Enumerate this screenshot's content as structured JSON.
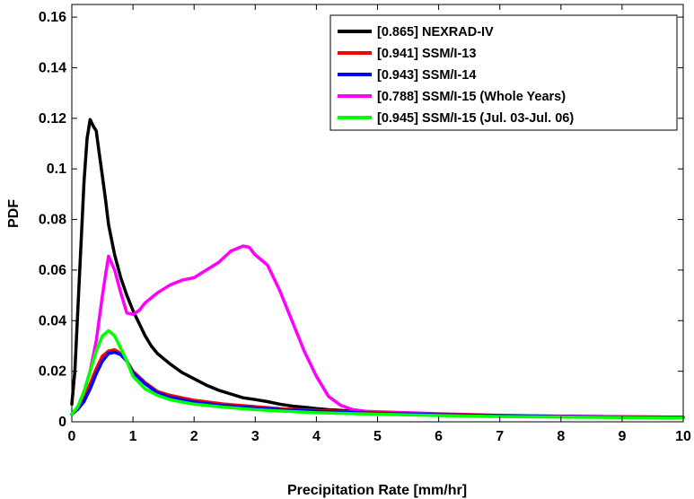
{
  "chart_data": {
    "type": "line",
    "title": "",
    "xlabel": "Precipitation Rate [mm/hr]",
    "ylabel": "PDF",
    "xlim": [
      0,
      10
    ],
    "ylim": [
      0,
      0.165
    ],
    "xticks": [
      0,
      1,
      2,
      3,
      4,
      5,
      6,
      7,
      8,
      9,
      10
    ],
    "yticks": [
      0,
      0.02,
      0.04,
      0.06,
      0.08,
      0.1,
      0.12,
      0.14,
      0.16
    ],
    "ytick_labels": [
      "0",
      "0.02",
      "0.04",
      "0.06",
      "0.08",
      "0.1",
      "0.12",
      "0.14",
      "0.16"
    ],
    "grid": false,
    "legend_position": "top-right",
    "series": [
      {
        "name": "[0.865] NEXRAD-IV",
        "color": "#000000",
        "x": [
          0,
          0.05,
          0.1,
          0.15,
          0.2,
          0.25,
          0.3,
          0.35,
          0.4,
          0.45,
          0.5,
          0.55,
          0.6,
          0.7,
          0.8,
          0.9,
          1.0,
          1.1,
          1.2,
          1.3,
          1.4,
          1.5,
          1.6,
          1.8,
          2.0,
          2.2,
          2.4,
          2.6,
          2.8,
          3.0,
          3.2,
          3.4,
          3.6,
          3.8,
          4.0,
          4.2,
          4.4,
          4.6,
          4.8,
          5.0,
          5.5,
          6.0,
          6.5,
          7.0,
          7.5,
          8.0,
          8.5,
          9.0,
          9.5,
          10.0
        ],
        "y": [
          0.007,
          0.02,
          0.045,
          0.07,
          0.095,
          0.112,
          0.1195,
          0.117,
          0.115,
          0.106,
          0.097,
          0.088,
          0.078,
          0.066,
          0.057,
          0.05,
          0.044,
          0.039,
          0.034,
          0.03,
          0.027,
          0.025,
          0.023,
          0.0195,
          0.017,
          0.0145,
          0.0125,
          0.011,
          0.0095,
          0.0088,
          0.008,
          0.007,
          0.0062,
          0.0058,
          0.0052,
          0.0048,
          0.0045,
          0.0042,
          0.004,
          0.0037,
          0.0033,
          0.003,
          0.0027,
          0.0024,
          0.0022,
          0.002,
          0.0019,
          0.0018,
          0.0017,
          0.0016
        ]
      },
      {
        "name": "[0.941] SSM/I-13",
        "color": "#ff0000",
        "x": [
          0,
          0.1,
          0.2,
          0.3,
          0.4,
          0.5,
          0.6,
          0.7,
          0.8,
          0.9,
          1.0,
          1.2,
          1.4,
          1.6,
          1.8,
          2.0,
          2.5,
          3.0,
          3.5,
          4.0,
          5.0,
          6.0,
          7.0,
          8.0,
          9.0,
          10.0
        ],
        "y": [
          0.003,
          0.005,
          0.009,
          0.015,
          0.021,
          0.026,
          0.028,
          0.0285,
          0.027,
          0.024,
          0.02,
          0.0155,
          0.012,
          0.0105,
          0.0095,
          0.0085,
          0.007,
          0.006,
          0.005,
          0.0045,
          0.0035,
          0.003,
          0.0025,
          0.0022,
          0.002,
          0.0018
        ]
      },
      {
        "name": "[0.943] SSM/I-14",
        "color": "#0000ff",
        "x": [
          0,
          0.1,
          0.2,
          0.3,
          0.4,
          0.5,
          0.6,
          0.7,
          0.8,
          0.9,
          1.0,
          1.2,
          1.4,
          1.6,
          1.8,
          2.0,
          2.5,
          3.0,
          3.5,
          4.0,
          5.0,
          6.0,
          7.0,
          8.0,
          9.0,
          10.0
        ],
        "y": [
          0.003,
          0.005,
          0.008,
          0.013,
          0.019,
          0.024,
          0.027,
          0.0275,
          0.0265,
          0.024,
          0.0195,
          0.015,
          0.0115,
          0.0098,
          0.0088,
          0.0078,
          0.0064,
          0.0055,
          0.0047,
          0.0042,
          0.0033,
          0.0028,
          0.0024,
          0.0021,
          0.0019,
          0.0017
        ]
      },
      {
        "name": "[0.788] SSM/I-15 (Whole Years)",
        "color": "#ff00ff",
        "x": [
          0,
          0.1,
          0.2,
          0.3,
          0.4,
          0.5,
          0.55,
          0.6,
          0.7,
          0.8,
          0.9,
          1.0,
          1.1,
          1.2,
          1.4,
          1.6,
          1.8,
          2.0,
          2.2,
          2.4,
          2.6,
          2.8,
          2.9,
          3.0,
          3.1,
          3.2,
          3.4,
          3.6,
          3.8,
          4.0,
          4.2,
          4.4,
          4.6,
          4.8,
          5.0,
          5.5,
          6.0,
          7.0,
          8.0,
          9.0,
          10.0
        ],
        "y": [
          0.003,
          0.006,
          0.012,
          0.02,
          0.032,
          0.05,
          0.058,
          0.0655,
          0.06,
          0.051,
          0.043,
          0.0425,
          0.044,
          0.047,
          0.051,
          0.054,
          0.056,
          0.057,
          0.06,
          0.063,
          0.0675,
          0.0695,
          0.069,
          0.066,
          0.064,
          0.062,
          0.052,
          0.04,
          0.028,
          0.018,
          0.01,
          0.0065,
          0.0048,
          0.0042,
          0.004,
          0.0036,
          0.0032,
          0.0026,
          0.0022,
          0.002,
          0.0018
        ]
      },
      {
        "name": "[0.945] SSM/I-15 (Jul. 03-Jul. 06)",
        "color": "#00ff00",
        "x": [
          0,
          0.1,
          0.2,
          0.3,
          0.4,
          0.5,
          0.6,
          0.7,
          0.8,
          0.9,
          1.0,
          1.2,
          1.4,
          1.6,
          1.8,
          2.0,
          2.5,
          3.0,
          3.5,
          4.0,
          5.0,
          6.0,
          7.0,
          8.0,
          9.0,
          10.0
        ],
        "y": [
          0.003,
          0.006,
          0.012,
          0.02,
          0.028,
          0.034,
          0.036,
          0.034,
          0.029,
          0.024,
          0.018,
          0.013,
          0.0105,
          0.0088,
          0.0078,
          0.007,
          0.0058,
          0.0048,
          0.0042,
          0.0036,
          0.003,
          0.0025,
          0.0021,
          0.0019,
          0.0017,
          0.0015
        ]
      }
    ]
  }
}
